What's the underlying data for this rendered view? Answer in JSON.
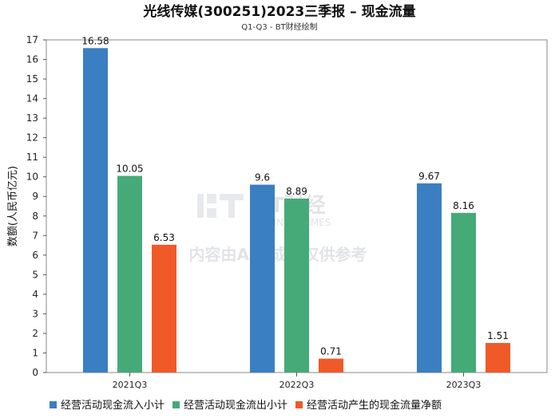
{
  "chart_data": {
    "type": "bar",
    "title": "光线传媒(300251)2023三季报 – 现金流量",
    "subtitle": "Q1-Q3 - BT财经绘制",
    "xlabel": "",
    "ylabel": "数额(人民币亿元)",
    "ylim": [
      0,
      17
    ],
    "yticks": [
      0,
      1,
      2,
      3,
      4,
      5,
      6,
      7,
      8,
      9,
      10,
      11,
      12,
      13,
      14,
      15,
      16,
      17
    ],
    "grid": false,
    "legend_position": "bottom",
    "categories": [
      "2021Q3",
      "2022Q3",
      "2023Q3"
    ],
    "series": [
      {
        "name": "经营活动现金流入小计",
        "color": "#3a7fc1",
        "values": [
          16.58,
          9.6,
          9.67
        ],
        "labels": [
          "16.58",
          "9.6",
          "9.67"
        ]
      },
      {
        "name": "经营活动现金流出小计",
        "color": "#46aa78",
        "values": [
          10.05,
          8.89,
          8.16
        ],
        "labels": [
          "10.05",
          "8.89",
          "8.16"
        ]
      },
      {
        "name": "经营活动产生的现金流量净额",
        "color": "#f05a28",
        "values": [
          6.53,
          0.71,
          1.51
        ],
        "labels": [
          "6.53",
          "0.71",
          "1.51"
        ]
      }
    ]
  },
  "watermark": {
    "brand": "BT财经",
    "brand_en": "BUSINESSTIMES",
    "notice": "内容由AI生成，仅供参考"
  }
}
